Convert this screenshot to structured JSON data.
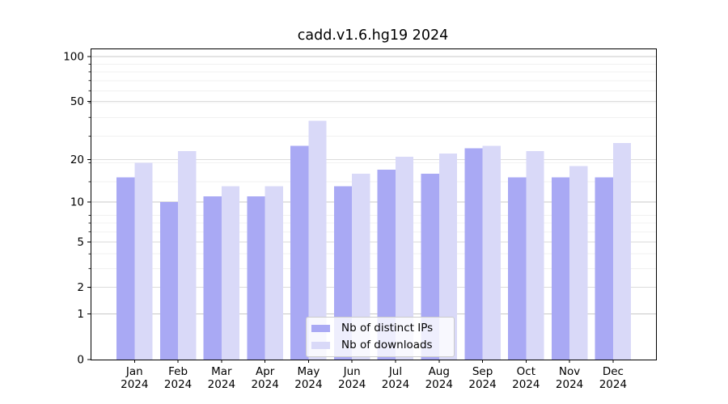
{
  "chart_data": {
    "type": "bar",
    "title": "cadd.v1.6.hg19 2024",
    "categories": [
      "Jan",
      "Feb",
      "Mar",
      "Apr",
      "May",
      "Jun",
      "Jul",
      "Aug",
      "Sep",
      "Oct",
      "Nov",
      "Dec"
    ],
    "category_year": "2024",
    "series": [
      {
        "name": "Nb of distinct IPs",
        "color": "#a9a9f4",
        "values": [
          15,
          10,
          11,
          11,
          25,
          13,
          17,
          16,
          24,
          15,
          15,
          15
        ]
      },
      {
        "name": "Nb of downloads",
        "color": "#d9d9f8",
        "values": [
          19,
          23,
          13,
          13,
          37,
          16,
          21,
          22,
          25,
          23,
          18,
          26
        ]
      }
    ],
    "y_axis": {
      "scale": "log10(1+v)",
      "ticks": [
        0,
        1,
        2,
        5,
        10,
        20,
        50,
        100
      ],
      "minor_ticks": [
        2,
        3,
        4,
        5,
        6,
        7,
        8,
        14,
        19,
        29,
        39,
        49,
        59,
        69,
        79,
        89
      ],
      "range": [
        0,
        113
      ]
    },
    "xlabel": "",
    "ylabel": "",
    "grid": true,
    "legend": {
      "position": "lower center"
    },
    "colors": {
      "grid_major_decade": "#c8c8c8",
      "grid_major": "#dcdcdc",
      "grid_minor": "#f1f1f1",
      "axis": "#000000",
      "background": "#ffffff"
    }
  }
}
